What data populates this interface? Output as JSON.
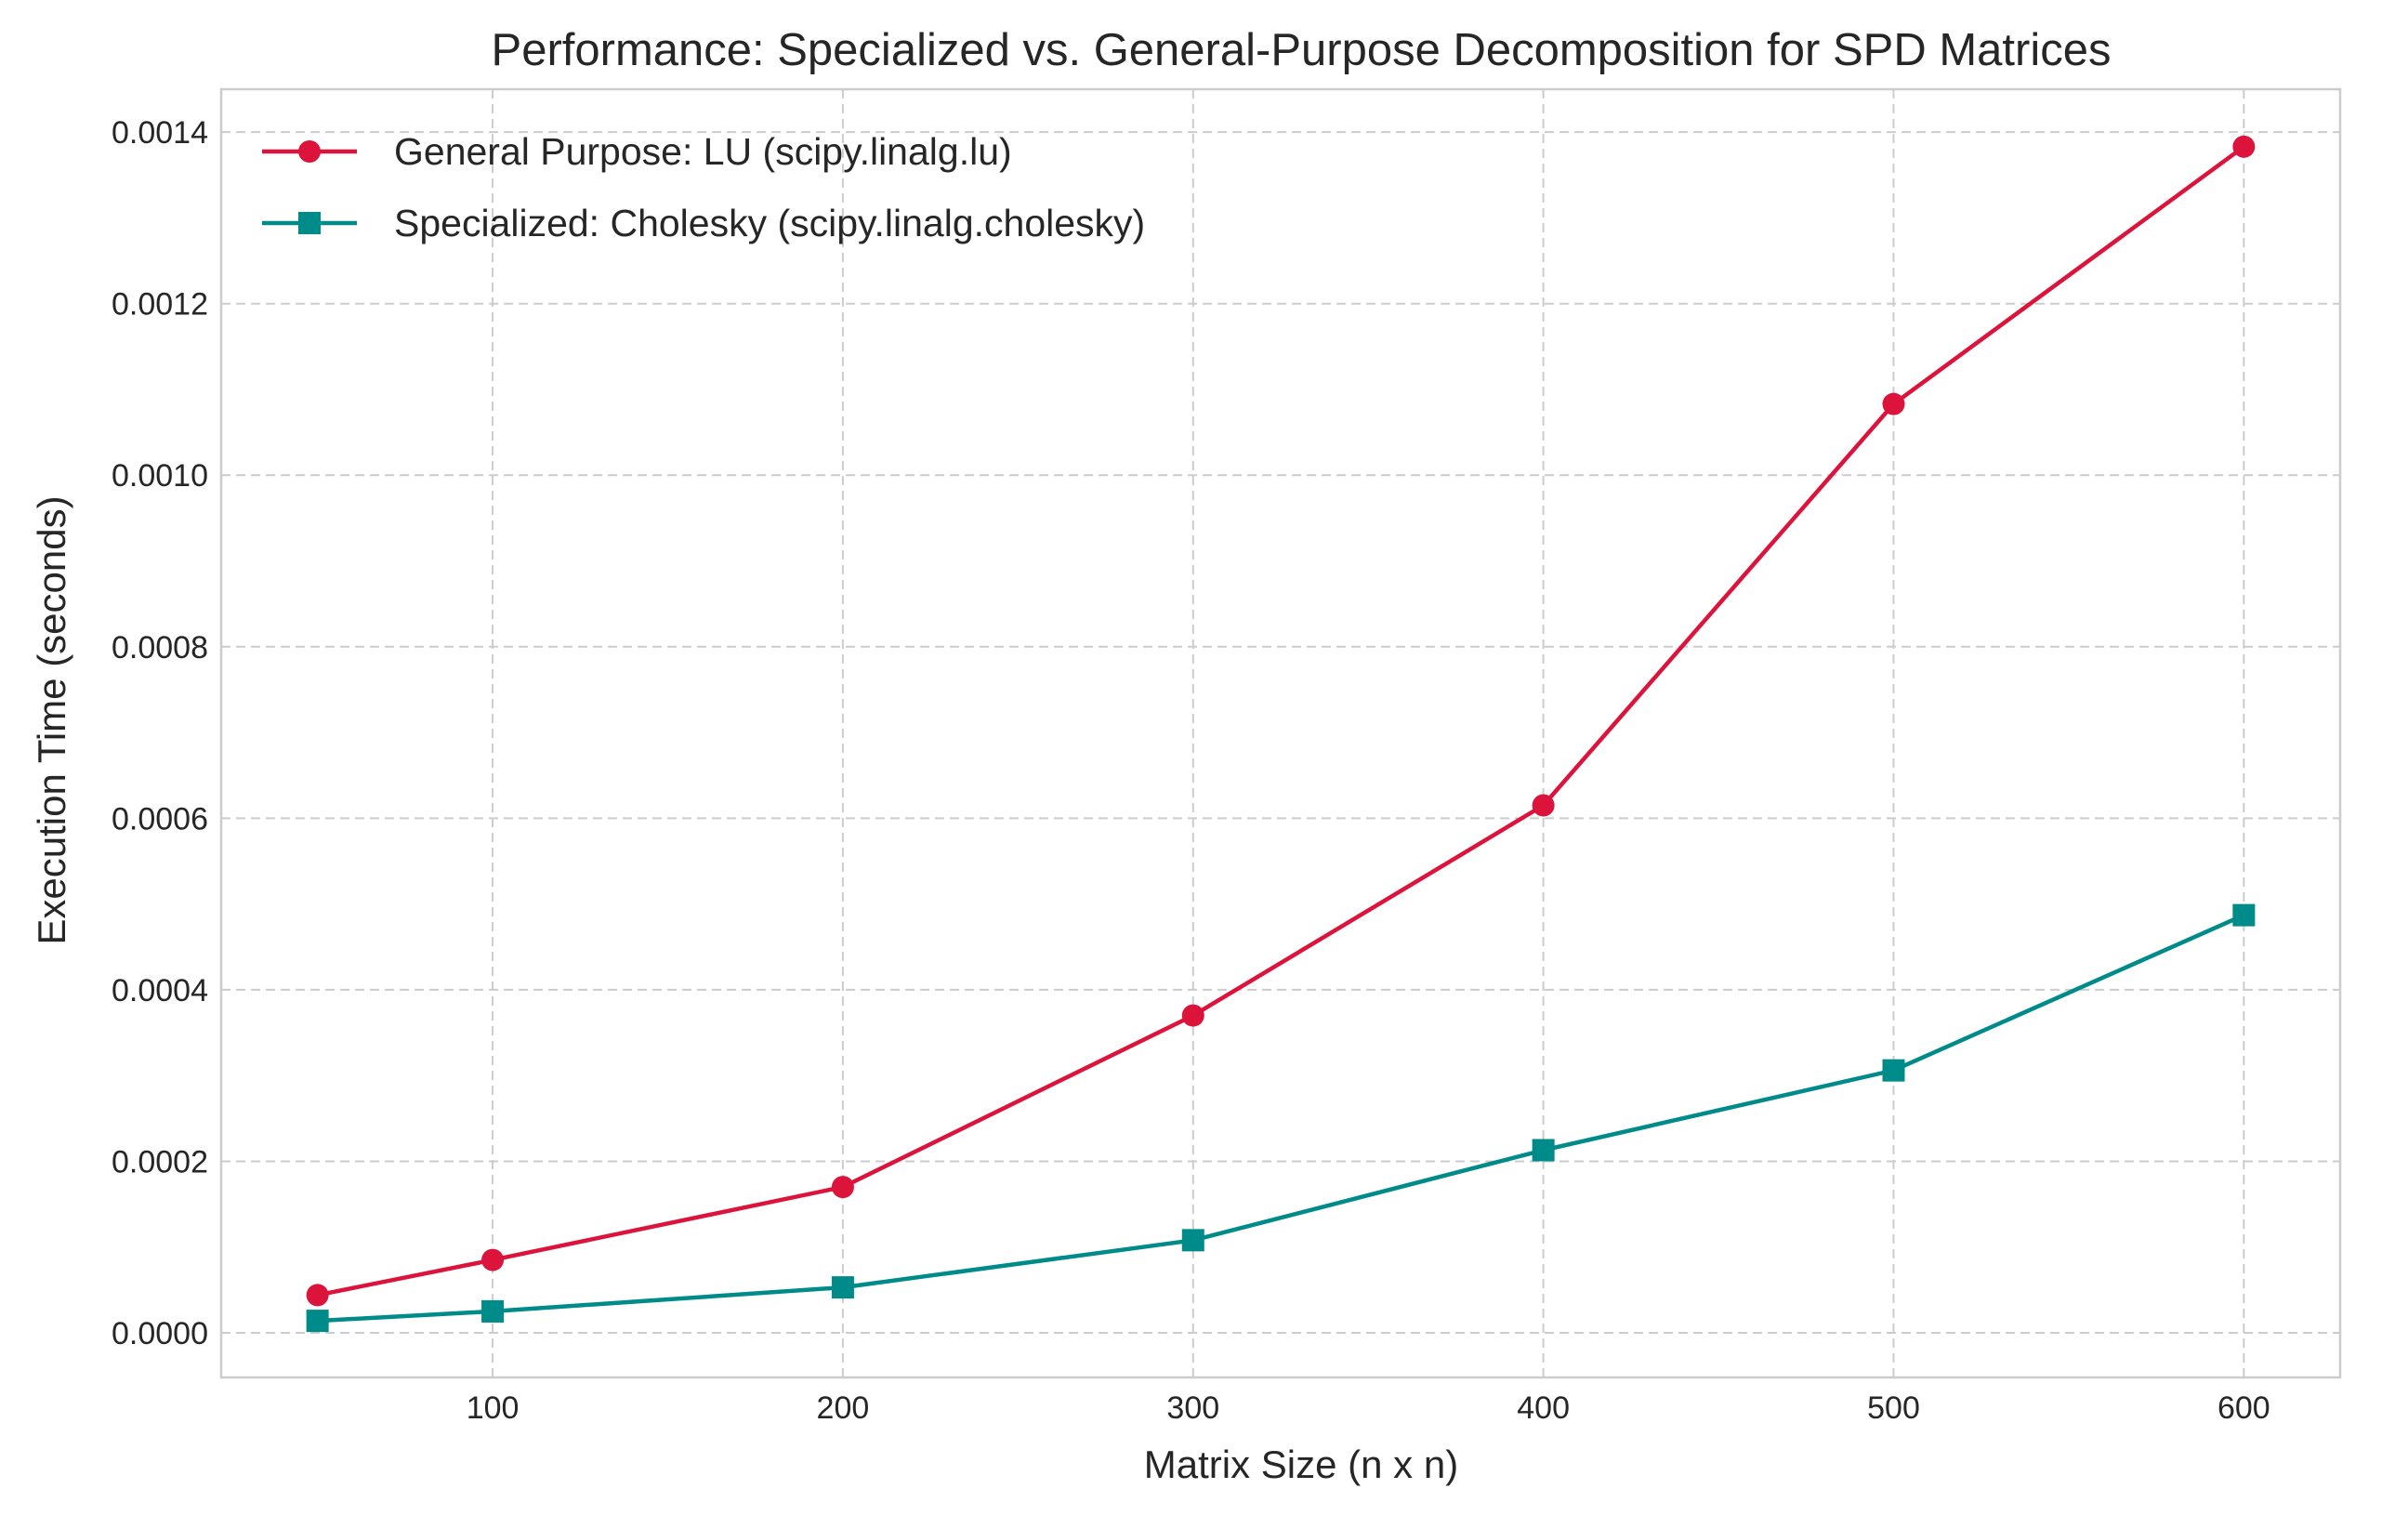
{
  "chart_data": {
    "type": "line",
    "title": "Performance: Specialized vs. General-Purpose Decomposition for SPD Matrices",
    "xlabel": "Matrix Size (n x n)",
    "ylabel": "Execution Time (seconds)",
    "xlim": [
      22.5,
      627.5
    ],
    "ylim": [
      -5.2e-05,
      0.00145
    ],
    "xticks": [
      100,
      200,
      300,
      400,
      500,
      600
    ],
    "xtick_labels": [
      "100",
      "200",
      "300",
      "400",
      "500",
      "600"
    ],
    "yticks": [
      0.0,
      0.0002,
      0.0004,
      0.0006,
      0.0008,
      0.001,
      0.0012,
      0.0014
    ],
    "ytick_labels": [
      "0.0000",
      "0.0002",
      "0.0004",
      "0.0006",
      "0.0008",
      "0.0010",
      "0.0012",
      "0.0014"
    ],
    "grid": true,
    "legend_position": "top-left",
    "series": [
      {
        "name": "General Purpose: LU (scipy.linalg.lu)",
        "color": "#dc143c",
        "marker": "circle",
        "x": [
          50,
          100,
          200,
          300,
          400,
          500,
          600
        ],
        "y": [
          4.4e-05,
          8.5e-05,
          0.00017,
          0.00037,
          0.000615,
          0.001083,
          0.001383
        ]
      },
      {
        "name": "Specialized: Cholesky (scipy.linalg.cholesky)",
        "color": "#008b8b",
        "marker": "square",
        "x": [
          50,
          100,
          200,
          300,
          400,
          500,
          600
        ],
        "y": [
          1.4e-05,
          2.5e-05,
          5.3e-05,
          0.000108,
          0.000213,
          0.000306,
          0.000487
        ]
      }
    ]
  }
}
